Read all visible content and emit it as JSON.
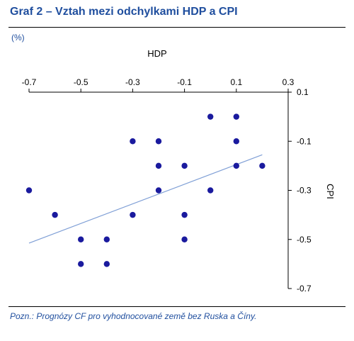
{
  "header": {
    "title": "Graf 2 – Vztah mezi odchylkami HDP a CPI",
    "unit": "(%)"
  },
  "footer": {
    "note": "Pozn.: Prognózy CF pro vyhodnocované země bez Ruska a Číny."
  },
  "colors": {
    "title": "#1f4e9e",
    "points": "#1a1a9e",
    "trend": "#7f9fd6",
    "axis": "#000000"
  },
  "chart_data": {
    "type": "scatter",
    "xlabel": "HDP",
    "ylabel": "CPI",
    "xlim": [
      -0.7,
      0.3
    ],
    "ylim": [
      -0.7,
      0.1
    ],
    "xticks": [
      -0.7,
      -0.5,
      -0.3,
      -0.1,
      0.1,
      0.3
    ],
    "yticks": [
      0.1,
      -0.1,
      -0.3,
      -0.5,
      -0.7
    ],
    "xtick_labels": [
      "-0.7",
      "-0.5",
      "-0.3",
      "-0.1",
      "0.1",
      "0.3"
    ],
    "ytick_labels": [
      "0.1",
      "-0.1",
      "-0.3",
      "-0.5",
      "-0.7"
    ],
    "x_axis_position": "top",
    "y_axis_position": "right",
    "grid": false,
    "points": [
      {
        "x": -0.7,
        "y": -0.3
      },
      {
        "x": -0.6,
        "y": -0.4
      },
      {
        "x": -0.5,
        "y": -0.5
      },
      {
        "x": -0.5,
        "y": -0.6
      },
      {
        "x": -0.4,
        "y": -0.5
      },
      {
        "x": -0.4,
        "y": -0.6
      },
      {
        "x": -0.3,
        "y": -0.1
      },
      {
        "x": -0.3,
        "y": -0.4
      },
      {
        "x": -0.2,
        "y": -0.1
      },
      {
        "x": -0.2,
        "y": -0.2
      },
      {
        "x": -0.2,
        "y": -0.3
      },
      {
        "x": -0.1,
        "y": -0.2
      },
      {
        "x": -0.1,
        "y": -0.4
      },
      {
        "x": -0.1,
        "y": -0.5
      },
      {
        "x": 0.0,
        "y": 0.0
      },
      {
        "x": 0.0,
        "y": -0.3
      },
      {
        "x": 0.1,
        "y": 0.0
      },
      {
        "x": 0.1,
        "y": -0.1
      },
      {
        "x": 0.1,
        "y": -0.2
      },
      {
        "x": 0.2,
        "y": -0.2
      }
    ],
    "trendline": {
      "from": {
        "x": -0.7,
        "y": -0.515
      },
      "to": {
        "x": 0.2,
        "y": -0.155
      }
    }
  }
}
